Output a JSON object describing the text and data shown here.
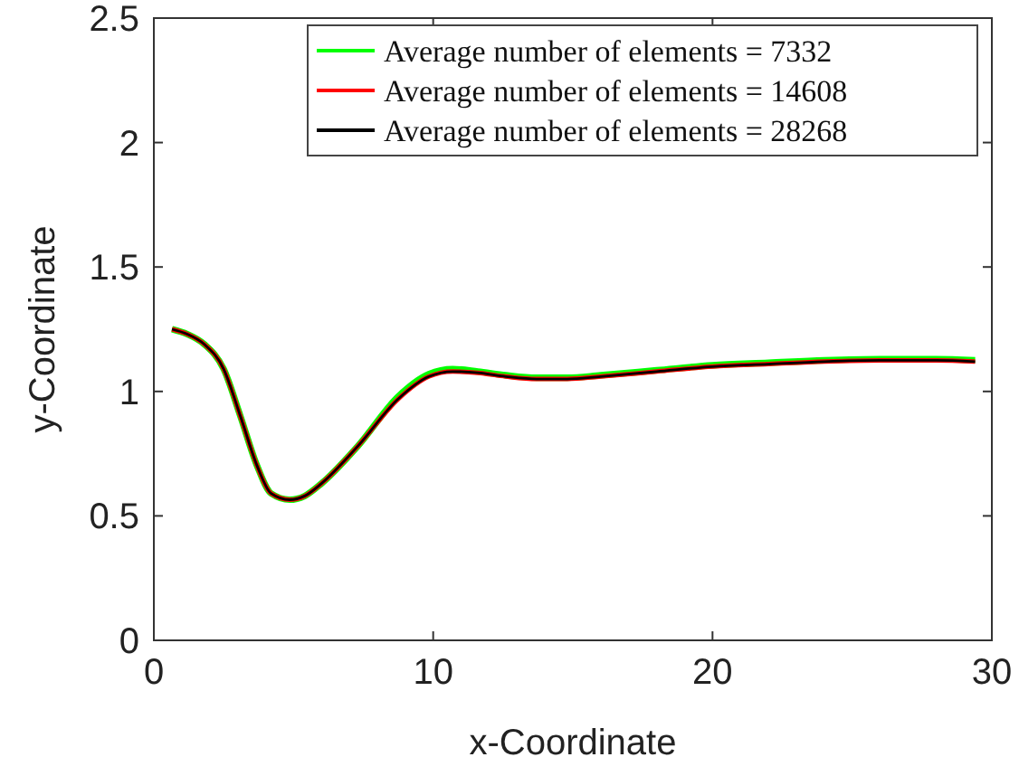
{
  "chart_data": {
    "type": "line",
    "xlabel": "x-Coordinate",
    "ylabel": "y-Coordinate",
    "xlim": [
      0,
      30
    ],
    "ylim": [
      0,
      2.5
    ],
    "xticks": [
      0,
      10,
      20,
      30
    ],
    "yticks": [
      0,
      0.5,
      1,
      1.5,
      2,
      2.5
    ],
    "legend": "top right",
    "grid": false,
    "x": [
      0.65,
      1.2,
      1.8,
      2.5,
      3.1,
      3.7,
      4.2,
      4.86,
      5.4,
      6.0,
      7.3,
      8.75,
      9.85,
      10.7,
      11.6,
      12.6,
      13.7,
      14.8,
      16,
      18,
      20,
      22,
      24,
      26,
      28,
      29.4
    ],
    "series": [
      {
        "name": "Average number of elements = 7332",
        "color": "#00ff00",
        "values": [
          1.25,
          1.23,
          1.19,
          1.09,
          0.9,
          0.7,
          0.59,
          0.565,
          0.58,
          0.63,
          0.78,
          0.98,
          1.07,
          1.09,
          1.08,
          1.065,
          1.055,
          1.055,
          1.065,
          1.085,
          1.105,
          1.115,
          1.125,
          1.13,
          1.13,
          1.125
        ]
      },
      {
        "name": "Average number of elements = 14608",
        "color": "#ff0000",
        "values": [
          1.25,
          1.23,
          1.19,
          1.09,
          0.9,
          0.7,
          0.59,
          0.565,
          0.58,
          0.63,
          0.78,
          0.97,
          1.06,
          1.08,
          1.075,
          1.06,
          1.05,
          1.05,
          1.06,
          1.08,
          1.1,
          1.11,
          1.12,
          1.125,
          1.125,
          1.12
        ]
      },
      {
        "name": "Average number of elements = 28268",
        "color": "#000000",
        "values": [
          1.25,
          1.23,
          1.19,
          1.09,
          0.9,
          0.7,
          0.59,
          0.565,
          0.58,
          0.63,
          0.78,
          0.97,
          1.06,
          1.08,
          1.075,
          1.06,
          1.05,
          1.05,
          1.06,
          1.08,
          1.1,
          1.11,
          1.12,
          1.125,
          1.125,
          1.12
        ]
      }
    ]
  }
}
